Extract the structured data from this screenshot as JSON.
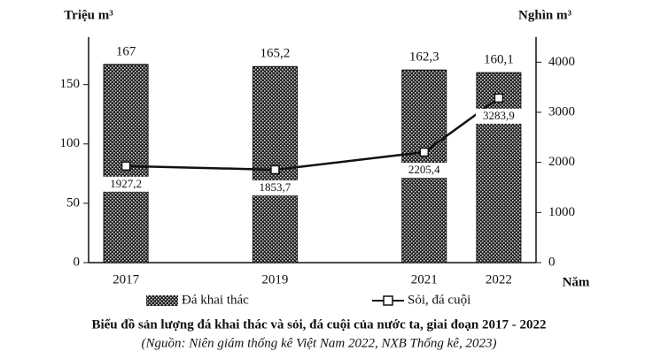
{
  "chart_data": {
    "type": "combo",
    "title": "Biểu đồ sản lượng đá khai thác và sỏi, đá cuội của nước ta, giai đoạn 2017 - 2022",
    "subtitle": "(Nguồn: Niên giám thống kê Việt Nam 2022, NXB Thống kê, 2023)",
    "ylabel": "Triệu m³",
    "y2label": "Nghìn m³",
    "xlabel": "Năm",
    "x": [
      2017,
      2019,
      2021,
      2022
    ],
    "xlim": [
      2016.5,
      2022.5
    ],
    "ylim": [
      0,
      190
    ],
    "yticks": [
      0,
      50,
      100,
      150
    ],
    "y2lim": [
      0,
      4500
    ],
    "y2ticks": [
      0,
      1000,
      2000,
      3000,
      4000
    ],
    "grid": false,
    "legend": "bottom",
    "series": [
      {
        "name": "Đá khai thác",
        "type": "bar",
        "color": "#222222",
        "values": [
          167,
          165.2,
          162.3,
          160.1
        ],
        "value_labels": [
          "167",
          "165,2",
          "162,3",
          "160,1"
        ]
      },
      {
        "name": "Sỏi, đá cuội",
        "type": "line",
        "axis": "y2",
        "color": "#111111",
        "values": [
          1927.2,
          1853.7,
          2205.4,
          3283.9
        ],
        "value_labels": [
          "1927,2",
          "1853,7",
          "2205,4",
          "3283,9"
        ]
      }
    ]
  }
}
